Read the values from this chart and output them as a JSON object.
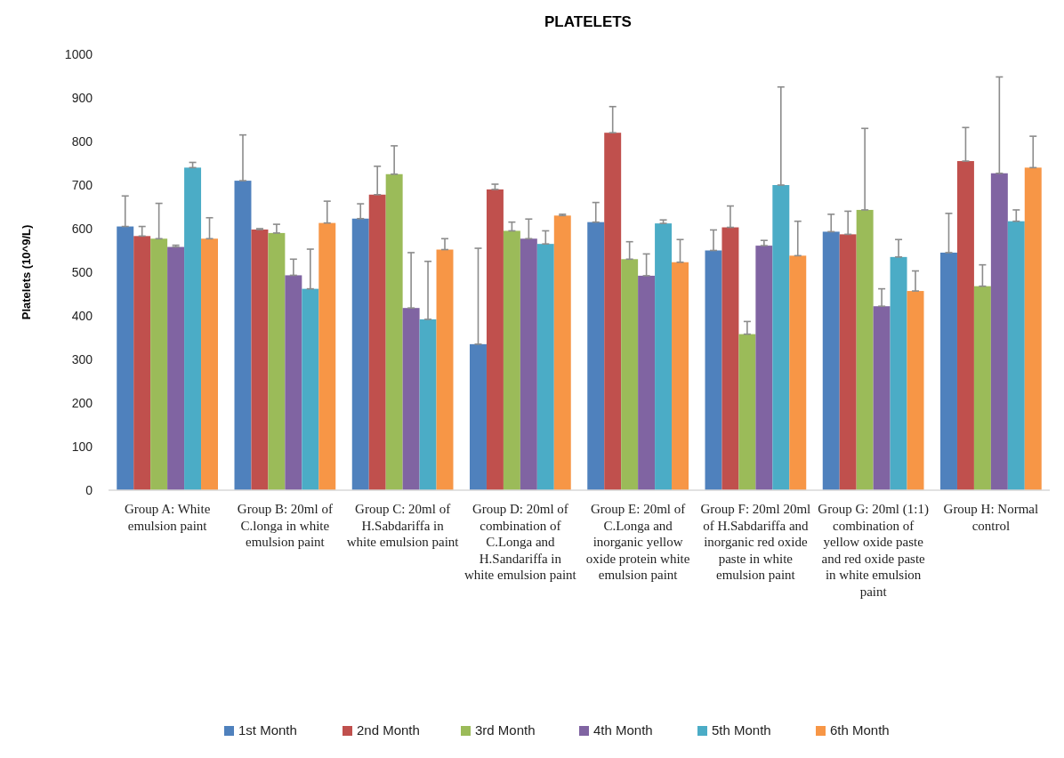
{
  "chart_data": {
    "type": "bar",
    "title": "PLATELETS",
    "ylabel": "Platelets (10^9/L)",
    "categories": [
      "Group A: White emulsion paint",
      "Group B: 20ml of C.longa in white emulsion paint",
      "Group C: 20ml of H.Sabdariffa in white emulsion paint",
      "Group D: 20ml of combination of C.Longa and H.Sandariffa in white emulsion paint",
      "Group E: 20ml of C.Longa and inorganic yellow oxide protein white emulsion paint",
      "Group F: 20ml 20ml of H.Sabdariffa and inorganic red oxide paste in white emulsion paint",
      "Group G: 20ml (1:1) combination of yellow oxide paste and red oxide paste in white emulsion paint",
      "Group H: Normal control"
    ],
    "series": [
      {
        "name": "1st Month",
        "color": "#4f81bd",
        "values": [
          605,
          710,
          623,
          335,
          615,
          550,
          593,
          545
        ],
        "errors": [
          [
            605,
            675
          ],
          [
            710,
            815
          ],
          [
            623,
            657
          ],
          [
            335,
            555
          ],
          [
            615,
            660
          ],
          [
            550,
            597
          ],
          [
            593,
            633
          ],
          [
            545,
            635
          ]
        ]
      },
      {
        "name": "2nd Month",
        "color": "#c0504d",
        "values": [
          583,
          598,
          678,
          690,
          820,
          603,
          587,
          755
        ],
        "errors": [
          [
            583,
            605
          ],
          [
            598,
            600
          ],
          [
            678,
            743
          ],
          [
            690,
            702
          ],
          [
            820,
            880
          ],
          [
            603,
            652
          ],
          [
            587,
            640
          ],
          [
            755,
            832
          ]
        ]
      },
      {
        "name": "3rd Month",
        "color": "#9bbb59",
        "values": [
          577,
          590,
          725,
          595,
          530,
          358,
          643,
          468
        ],
        "errors": [
          [
            577,
            658
          ],
          [
            590,
            610
          ],
          [
            725,
            790
          ],
          [
            595,
            615
          ],
          [
            530,
            570
          ],
          [
            358,
            387
          ],
          [
            643,
            830
          ],
          [
            468,
            517
          ]
        ]
      },
      {
        "name": "4th Month",
        "color": "#8064a2",
        "values": [
          558,
          493,
          418,
          577,
          492,
          561,
          422,
          727
        ],
        "errors": [
          [
            558,
            562
          ],
          [
            493,
            530
          ],
          [
            418,
            545
          ],
          [
            577,
            622
          ],
          [
            492,
            542
          ],
          [
            561,
            573
          ],
          [
            422,
            462
          ],
          [
            727,
            948
          ]
        ]
      },
      {
        "name": "5th Month",
        "color": "#4bacc6",
        "values": [
          740,
          462,
          392,
          565,
          612,
          700,
          535,
          617
        ],
        "errors": [
          [
            740,
            752
          ],
          [
            462,
            553
          ],
          [
            392,
            525
          ],
          [
            565,
            595
          ],
          [
            612,
            620
          ],
          [
            700,
            925
          ],
          [
            535,
            575
          ],
          [
            617,
            643
          ]
        ]
      },
      {
        "name": "6th Month",
        "color": "#f79646",
        "values": [
          577,
          613,
          552,
          630,
          523,
          538,
          457,
          740
        ],
        "errors": [
          [
            577,
            625
          ],
          [
            613,
            663
          ],
          [
            552,
            577
          ],
          [
            630,
            633
          ],
          [
            523,
            575
          ],
          [
            538,
            617
          ],
          [
            457,
            503
          ],
          [
            740,
            812
          ]
        ]
      }
    ],
    "ylim": [
      0,
      1000
    ],
    "yticks": [
      0,
      100,
      200,
      300,
      400,
      500,
      600,
      700,
      800,
      900,
      1000
    ],
    "grid": false,
    "legend": "bottom"
  }
}
